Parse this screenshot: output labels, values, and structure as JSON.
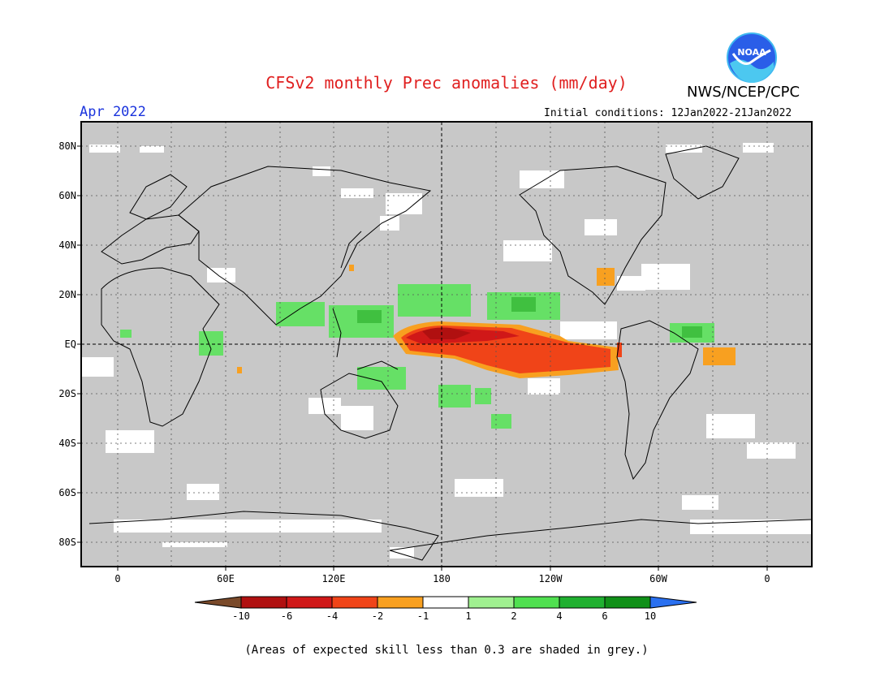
{
  "header": {
    "title": "CFSv2 monthly Prec anomalies (mm/day)",
    "month": "Apr 2022",
    "agency": "NWS/NCEP/CPC",
    "initial_conditions": "Initial conditions: 12Jan2022-21Jan2022",
    "logo_text": "NOAA"
  },
  "map": {
    "lat_labels": [
      "80N",
      "60N",
      "40N",
      "20N",
      "EQ",
      "20S",
      "40S",
      "60S",
      "80S"
    ],
    "lon_labels": [
      "0",
      "60E",
      "120E",
      "180",
      "120W",
      "60W",
      "0"
    ],
    "background_color": "#c8c8c8"
  },
  "colorbar": {
    "labels": [
      "-10",
      "-6",
      "-4",
      "-2",
      "-1",
      "1",
      "2",
      "4",
      "6",
      "10"
    ],
    "colors": [
      "#7a4a2a",
      "#b01010",
      "#d01818",
      "#f04418",
      "#f8a020",
      "#ffffff",
      "#a0f090",
      "#50e050",
      "#20b030",
      "#109018",
      "#2a70f0"
    ]
  },
  "footnote": "(Areas of expected skill less than 0.3 are shaded in grey.)"
}
